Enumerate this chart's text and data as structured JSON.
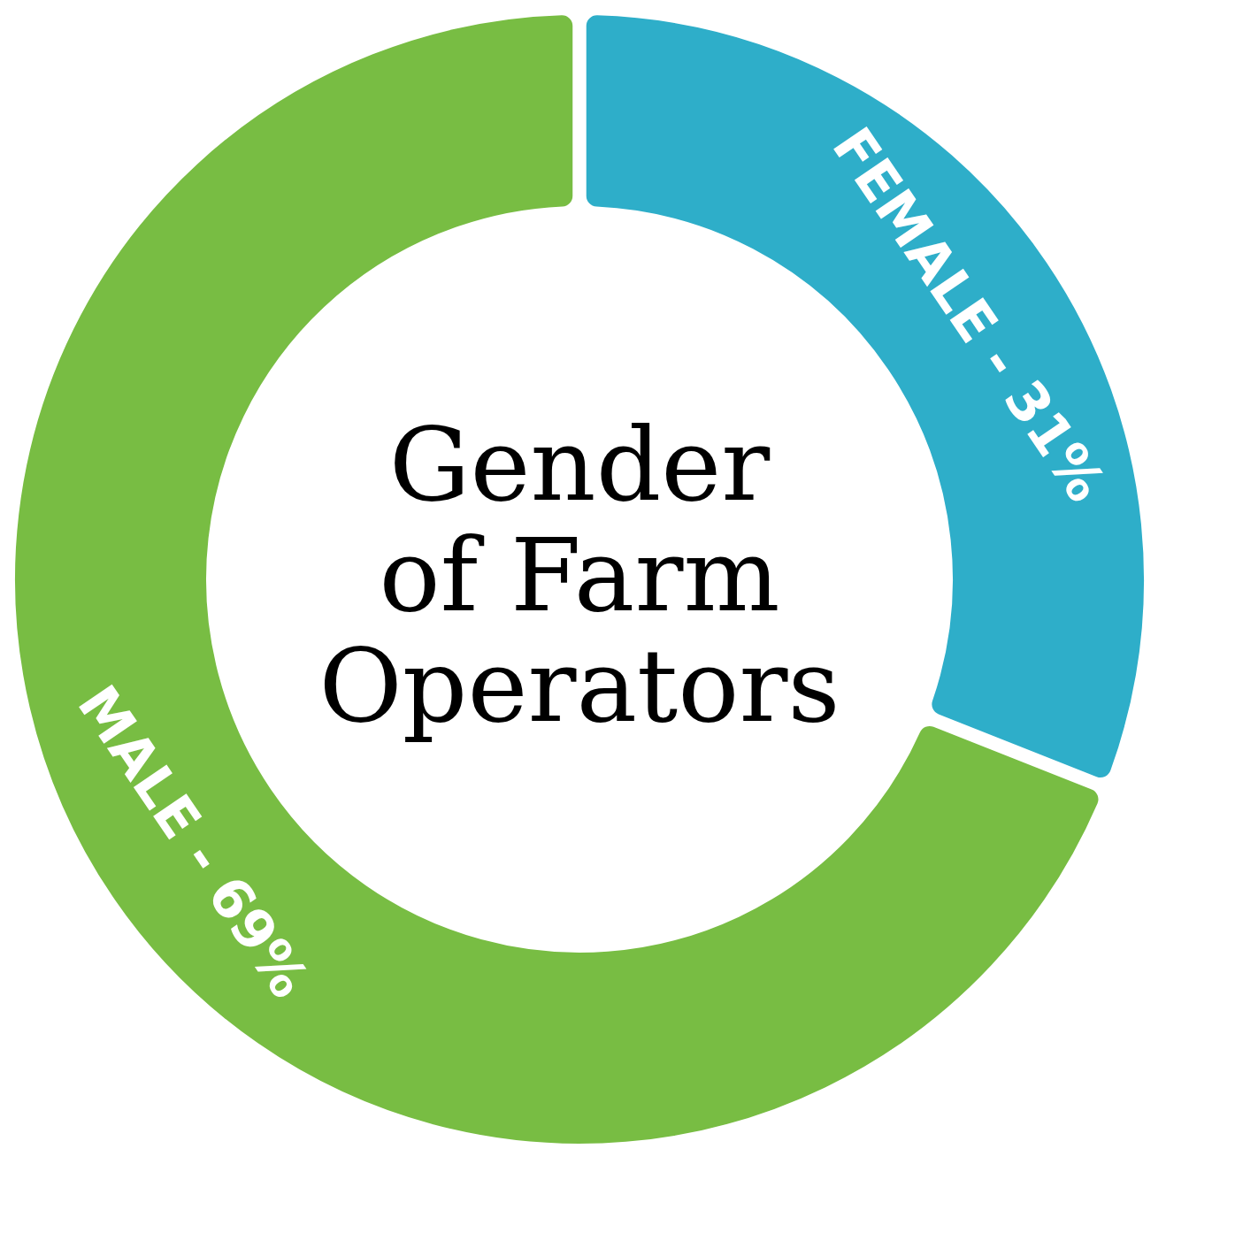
{
  "chart_data": {
    "type": "donut",
    "title": "Gender\nof Farm\nOperators",
    "categories": [
      "FEMALE",
      "MALE"
    ],
    "values": [
      31,
      69
    ],
    "colors": [
      "#2eaec9",
      "#78bd43"
    ],
    "value_labels": [
      "31%",
      "69%"
    ]
  }
}
